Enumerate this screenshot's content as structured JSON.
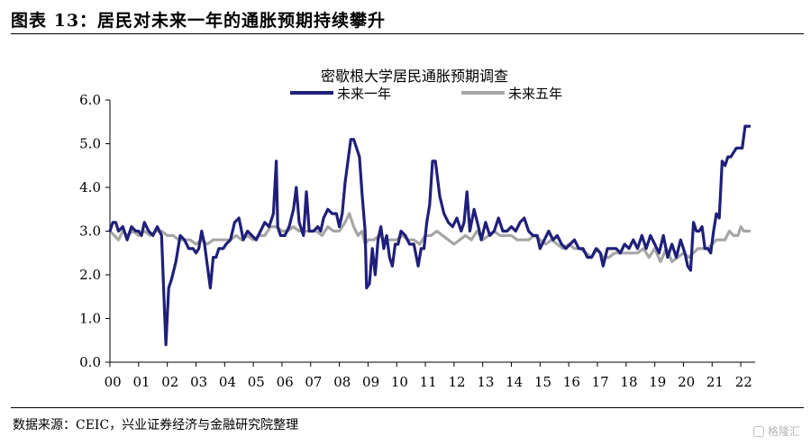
{
  "figure": {
    "title": "图表 13：居民对未来一年的通胀预期持续攀升",
    "source": "数据来源：CEIC，兴业证券经济与金融研究院整理",
    "watermark": "格隆汇"
  },
  "chart_data": {
    "type": "line",
    "title": "密歇根大学居民通胀预期调查",
    "xlabel": "",
    "ylabel": "",
    "ylim": [
      0,
      6
    ],
    "yticks": [
      "0.0",
      "1.0",
      "2.0",
      "3.0",
      "4.0",
      "5.0",
      "6.0"
    ],
    "xticks": [
      "00",
      "01",
      "02",
      "03",
      "04",
      "05",
      "06",
      "07",
      "08",
      "09",
      "10",
      "11",
      "12",
      "13",
      "14",
      "15",
      "16",
      "17",
      "18",
      "19",
      "20",
      "21",
      "22"
    ],
    "xlim": [
      2000.0,
      2022.5
    ],
    "grid": false,
    "legend": "top-center",
    "series": [
      {
        "name": "未来一年",
        "color": "#1f1f7a",
        "points": [
          [
            2000.0,
            3.0
          ],
          [
            2000.1,
            3.2
          ],
          [
            2000.2,
            3.2
          ],
          [
            2000.3,
            3.0
          ],
          [
            2000.45,
            3.1
          ],
          [
            2000.6,
            2.8
          ],
          [
            2000.75,
            3.1
          ],
          [
            2000.9,
            3.0
          ],
          [
            2001.0,
            3.0
          ],
          [
            2001.1,
            2.9
          ],
          [
            2001.2,
            3.2
          ],
          [
            2001.35,
            3.0
          ],
          [
            2001.5,
            2.9
          ],
          [
            2001.65,
            3.1
          ],
          [
            2001.8,
            2.9
          ],
          [
            2001.9,
            1.2
          ],
          [
            2001.95,
            0.4
          ],
          [
            2002.05,
            1.7
          ],
          [
            2002.15,
            1.9
          ],
          [
            2002.3,
            2.3
          ],
          [
            2002.45,
            2.9
          ],
          [
            2002.6,
            2.8
          ],
          [
            2002.75,
            2.6
          ],
          [
            2002.9,
            2.6
          ],
          [
            2003.0,
            2.5
          ],
          [
            2003.1,
            2.6
          ],
          [
            2003.2,
            3.0
          ],
          [
            2003.3,
            2.7
          ],
          [
            2003.4,
            2.2
          ],
          [
            2003.5,
            1.7
          ],
          [
            2003.6,
            2.4
          ],
          [
            2003.7,
            2.4
          ],
          [
            2003.8,
            2.6
          ],
          [
            2003.95,
            2.6
          ],
          [
            2004.05,
            2.7
          ],
          [
            2004.2,
            2.8
          ],
          [
            2004.35,
            3.2
          ],
          [
            2004.5,
            3.3
          ],
          [
            2004.65,
            2.8
          ],
          [
            2004.8,
            3.0
          ],
          [
            2004.95,
            2.9
          ],
          [
            2005.1,
            2.8
          ],
          [
            2005.25,
            3.0
          ],
          [
            2005.4,
            3.2
          ],
          [
            2005.55,
            3.1
          ],
          [
            2005.7,
            3.4
          ],
          [
            2005.8,
            4.6
          ],
          [
            2005.85,
            3.1
          ],
          [
            2005.95,
            2.9
          ],
          [
            2006.1,
            2.9
          ],
          [
            2006.25,
            3.1
          ],
          [
            2006.4,
            3.5
          ],
          [
            2006.5,
            4.0
          ],
          [
            2006.6,
            3.2
          ],
          [
            2006.75,
            2.9
          ],
          [
            2006.85,
            3.9
          ],
          [
            2006.95,
            3.0
          ],
          [
            2007.1,
            3.0
          ],
          [
            2007.25,
            3.1
          ],
          [
            2007.35,
            3.0
          ],
          [
            2007.45,
            3.3
          ],
          [
            2007.6,
            3.5
          ],
          [
            2007.75,
            3.4
          ],
          [
            2007.9,
            3.4
          ],
          [
            2008.0,
            3.1
          ],
          [
            2008.1,
            3.4
          ],
          [
            2008.2,
            4.1
          ],
          [
            2008.3,
            4.6
          ],
          [
            2008.4,
            5.1
          ],
          [
            2008.5,
            5.1
          ],
          [
            2008.6,
            4.9
          ],
          [
            2008.7,
            4.7
          ],
          [
            2008.8,
            3.8
          ],
          [
            2008.9,
            3.0
          ],
          [
            2008.95,
            1.7
          ],
          [
            2009.05,
            1.8
          ],
          [
            2009.15,
            2.6
          ],
          [
            2009.25,
            2.0
          ],
          [
            2009.35,
            2.8
          ],
          [
            2009.45,
            3.1
          ],
          [
            2009.55,
            2.6
          ],
          [
            2009.65,
            2.9
          ],
          [
            2009.75,
            2.4
          ],
          [
            2009.85,
            2.2
          ],
          [
            2009.95,
            2.7
          ],
          [
            2010.05,
            2.7
          ],
          [
            2010.15,
            3.0
          ],
          [
            2010.3,
            2.9
          ],
          [
            2010.45,
            2.7
          ],
          [
            2010.6,
            2.7
          ],
          [
            2010.75,
            2.2
          ],
          [
            2010.85,
            2.6
          ],
          [
            2010.95,
            2.6
          ],
          [
            2011.05,
            3.2
          ],
          [
            2011.15,
            3.6
          ],
          [
            2011.25,
            4.6
          ],
          [
            2011.35,
            4.6
          ],
          [
            2011.5,
            3.8
          ],
          [
            2011.65,
            3.4
          ],
          [
            2011.8,
            3.2
          ],
          [
            2011.95,
            3.1
          ],
          [
            2012.1,
            3.3
          ],
          [
            2012.25,
            3.0
          ],
          [
            2012.35,
            3.2
          ],
          [
            2012.45,
            3.9
          ],
          [
            2012.55,
            3.0
          ],
          [
            2012.7,
            3.5
          ],
          [
            2012.85,
            3.1
          ],
          [
            2012.95,
            2.8
          ],
          [
            2013.1,
            3.2
          ],
          [
            2013.25,
            2.9
          ],
          [
            2013.4,
            3.0
          ],
          [
            2013.55,
            3.3
          ],
          [
            2013.7,
            3.0
          ],
          [
            2013.85,
            3.0
          ],
          [
            2014.0,
            3.1
          ],
          [
            2014.15,
            3.0
          ],
          [
            2014.3,
            3.2
          ],
          [
            2014.45,
            3.3
          ],
          [
            2014.6,
            3.0
          ],
          [
            2014.75,
            2.9
          ],
          [
            2014.9,
            2.9
          ],
          [
            2015.0,
            2.6
          ],
          [
            2015.15,
            2.8
          ],
          [
            2015.3,
            3.0
          ],
          [
            2015.45,
            2.8
          ],
          [
            2015.6,
            2.9
          ],
          [
            2015.75,
            2.7
          ],
          [
            2015.9,
            2.6
          ],
          [
            2016.05,
            2.7
          ],
          [
            2016.2,
            2.8
          ],
          [
            2016.35,
            2.6
          ],
          [
            2016.5,
            2.6
          ],
          [
            2016.65,
            2.4
          ],
          [
            2016.8,
            2.4
          ],
          [
            2016.95,
            2.6
          ],
          [
            2017.1,
            2.5
          ],
          [
            2017.2,
            2.2
          ],
          [
            2017.35,
            2.6
          ],
          [
            2017.5,
            2.6
          ],
          [
            2017.65,
            2.6
          ],
          [
            2017.8,
            2.5
          ],
          [
            2017.95,
            2.7
          ],
          [
            2018.1,
            2.6
          ],
          [
            2018.25,
            2.8
          ],
          [
            2018.4,
            2.6
          ],
          [
            2018.55,
            2.9
          ],
          [
            2018.7,
            2.6
          ],
          [
            2018.85,
            2.9
          ],
          [
            2019.0,
            2.7
          ],
          [
            2019.15,
            2.5
          ],
          [
            2019.3,
            2.9
          ],
          [
            2019.45,
            2.4
          ],
          [
            2019.6,
            2.7
          ],
          [
            2019.75,
            2.4
          ],
          [
            2019.9,
            2.8
          ],
          [
            2020.05,
            2.5
          ],
          [
            2020.15,
            2.2
          ],
          [
            2020.25,
            2.1
          ],
          [
            2020.35,
            3.2
          ],
          [
            2020.45,
            3.0
          ],
          [
            2020.55,
            3.0
          ],
          [
            2020.65,
            3.1
          ],
          [
            2020.75,
            2.6
          ],
          [
            2020.85,
            2.6
          ],
          [
            2020.95,
            2.5
          ],
          [
            2021.05,
            3.0
          ],
          [
            2021.15,
            3.4
          ],
          [
            2021.25,
            3.3
          ],
          [
            2021.35,
            4.6
          ],
          [
            2021.45,
            4.5
          ],
          [
            2021.55,
            4.7
          ],
          [
            2021.65,
            4.7
          ],
          [
            2021.75,
            4.8
          ],
          [
            2021.85,
            4.9
          ],
          [
            2021.95,
            4.9
          ],
          [
            2022.05,
            4.9
          ],
          [
            2022.15,
            5.4
          ],
          [
            2022.25,
            5.4
          ],
          [
            2022.3,
            5.4
          ]
        ]
      },
      {
        "name": "未来五年",
        "color": "#a6a6a6",
        "points": [
          [
            2000.0,
            3.0
          ],
          [
            2000.15,
            2.9
          ],
          [
            2000.3,
            2.8
          ],
          [
            2000.45,
            3.0
          ],
          [
            2000.6,
            2.9
          ],
          [
            2000.8,
            3.0
          ],
          [
            2001.0,
            2.9
          ],
          [
            2001.2,
            3.0
          ],
          [
            2001.4,
            2.9
          ],
          [
            2001.6,
            3.0
          ],
          [
            2001.8,
            3.0
          ],
          [
            2002.0,
            2.9
          ],
          [
            2002.2,
            2.9
          ],
          [
            2002.4,
            2.8
          ],
          [
            2002.6,
            2.8
          ],
          [
            2002.8,
            2.8
          ],
          [
            2003.0,
            2.7
          ],
          [
            2003.2,
            2.8
          ],
          [
            2003.4,
            2.7
          ],
          [
            2003.6,
            2.8
          ],
          [
            2003.8,
            2.8
          ],
          [
            2004.0,
            2.8
          ],
          [
            2004.2,
            2.8
          ],
          [
            2004.4,
            2.9
          ],
          [
            2004.6,
            2.8
          ],
          [
            2004.8,
            2.9
          ],
          [
            2005.0,
            2.8
          ],
          [
            2005.2,
            2.9
          ],
          [
            2005.4,
            2.9
          ],
          [
            2005.6,
            3.1
          ],
          [
            2005.8,
            3.1
          ],
          [
            2006.0,
            3.0
          ],
          [
            2006.2,
            3.0
          ],
          [
            2006.4,
            3.1
          ],
          [
            2006.6,
            3.0
          ],
          [
            2006.8,
            3.0
          ],
          [
            2007.0,
            3.0
          ],
          [
            2007.2,
            3.0
          ],
          [
            2007.4,
            2.9
          ],
          [
            2007.6,
            3.1
          ],
          [
            2007.8,
            3.0
          ],
          [
            2008.0,
            3.0
          ],
          [
            2008.2,
            3.2
          ],
          [
            2008.35,
            3.4
          ],
          [
            2008.5,
            3.1
          ],
          [
            2008.65,
            2.9
          ],
          [
            2008.8,
            3.0
          ],
          [
            2008.9,
            2.7
          ],
          [
            2009.0,
            2.8
          ],
          [
            2009.2,
            2.8
          ],
          [
            2009.4,
            2.9
          ],
          [
            2009.6,
            2.8
          ],
          [
            2009.8,
            2.8
          ],
          [
            2010.0,
            2.8
          ],
          [
            2010.2,
            2.9
          ],
          [
            2010.4,
            2.8
          ],
          [
            2010.6,
            2.8
          ],
          [
            2010.8,
            2.7
          ],
          [
            2011.0,
            2.9
          ],
          [
            2011.2,
            2.9
          ],
          [
            2011.4,
            3.0
          ],
          [
            2011.6,
            2.9
          ],
          [
            2011.8,
            2.8
          ],
          [
            2012.0,
            2.7
          ],
          [
            2012.2,
            2.8
          ],
          [
            2012.4,
            2.9
          ],
          [
            2012.6,
            2.8
          ],
          [
            2012.8,
            3.0
          ],
          [
            2013.0,
            2.8
          ],
          [
            2013.2,
            2.9
          ],
          [
            2013.4,
            3.0
          ],
          [
            2013.6,
            2.9
          ],
          [
            2013.8,
            2.9
          ],
          [
            2014.0,
            2.9
          ],
          [
            2014.2,
            2.8
          ],
          [
            2014.4,
            2.8
          ],
          [
            2014.6,
            2.8
          ],
          [
            2014.8,
            2.9
          ],
          [
            2015.0,
            2.8
          ],
          [
            2015.2,
            2.7
          ],
          [
            2015.4,
            2.8
          ],
          [
            2015.6,
            2.7
          ],
          [
            2015.8,
            2.6
          ],
          [
            2016.0,
            2.7
          ],
          [
            2016.2,
            2.6
          ],
          [
            2016.4,
            2.6
          ],
          [
            2016.6,
            2.5
          ],
          [
            2016.8,
            2.4
          ],
          [
            2017.0,
            2.6
          ],
          [
            2017.2,
            2.4
          ],
          [
            2017.4,
            2.4
          ],
          [
            2017.6,
            2.5
          ],
          [
            2017.8,
            2.5
          ],
          [
            2018.0,
            2.5
          ],
          [
            2018.2,
            2.5
          ],
          [
            2018.4,
            2.5
          ],
          [
            2018.6,
            2.6
          ],
          [
            2018.8,
            2.4
          ],
          [
            2019.0,
            2.6
          ],
          [
            2019.2,
            2.3
          ],
          [
            2019.4,
            2.6
          ],
          [
            2019.6,
            2.3
          ],
          [
            2019.8,
            2.4
          ],
          [
            2020.0,
            2.5
          ],
          [
            2020.2,
            2.4
          ],
          [
            2020.35,
            2.5
          ],
          [
            2020.5,
            2.6
          ],
          [
            2020.7,
            2.6
          ],
          [
            2020.85,
            2.6
          ],
          [
            2021.0,
            2.7
          ],
          [
            2021.15,
            2.8
          ],
          [
            2021.3,
            2.8
          ],
          [
            2021.45,
            2.8
          ],
          [
            2021.6,
            3.0
          ],
          [
            2021.75,
            2.9
          ],
          [
            2021.9,
            2.9
          ],
          [
            2022.0,
            3.1
          ],
          [
            2022.1,
            3.0
          ],
          [
            2022.2,
            3.0
          ],
          [
            2022.3,
            3.0
          ]
        ]
      }
    ]
  }
}
